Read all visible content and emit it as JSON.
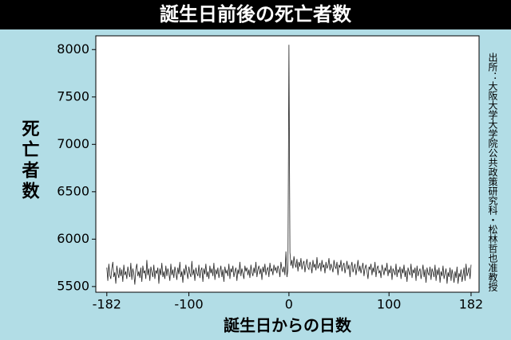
{
  "chart_data": {
    "type": "line",
    "title": "誕生日前後の死亡者数",
    "y_label": "死亡者数",
    "x_label": "誕生日からの日数",
    "source": "出所：大阪大学大学院公共政策研究科・松林哲也准教授",
    "xlim": [
      -193,
      190
    ],
    "ylim": [
      5440,
      8145
    ],
    "xticks": [
      -182,
      -100,
      0,
      100,
      182
    ],
    "yticks": [
      5500,
      6000,
      6500,
      7000,
      7500,
      8000
    ],
    "x": [
      -182,
      -181,
      -180,
      -179,
      -178,
      -177,
      -176,
      -175,
      -174,
      -173,
      -172,
      -171,
      -170,
      -169,
      -168,
      -167,
      -166,
      -165,
      -164,
      -163,
      -162,
      -161,
      -160,
      -159,
      -158,
      -157,
      -156,
      -155,
      -154,
      -153,
      -152,
      -151,
      -150,
      -149,
      -148,
      -147,
      -146,
      -145,
      -144,
      -143,
      -142,
      -141,
      -140,
      -139,
      -138,
      -137,
      -136,
      -135,
      -134,
      -133,
      -132,
      -131,
      -130,
      -129,
      -128,
      -127,
      -126,
      -125,
      -124,
      -123,
      -122,
      -121,
      -120,
      -119,
      -118,
      -117,
      -116,
      -115,
      -114,
      -113,
      -112,
      -111,
      -110,
      -109,
      -108,
      -107,
      -106,
      -105,
      -104,
      -103,
      -102,
      -101,
      -100,
      -99,
      -98,
      -97,
      -96,
      -95,
      -94,
      -93,
      -92,
      -91,
      -90,
      -89,
      -88,
      -87,
      -86,
      -85,
      -84,
      -83,
      -82,
      -81,
      -80,
      -79,
      -78,
      -77,
      -76,
      -75,
      -74,
      -73,
      -72,
      -71,
      -70,
      -69,
      -68,
      -67,
      -66,
      -65,
      -64,
      -63,
      -62,
      -61,
      -60,
      -59,
      -58,
      -57,
      -56,
      -55,
      -54,
      -53,
      -52,
      -51,
      -50,
      -49,
      -48,
      -47,
      -46,
      -45,
      -44,
      -43,
      -42,
      -41,
      -40,
      -39,
      -38,
      -37,
      -36,
      -35,
      -34,
      -33,
      -32,
      -31,
      -30,
      -29,
      -28,
      -27,
      -26,
      -25,
      -24,
      -23,
      -22,
      -21,
      -20,
      -19,
      -18,
      -17,
      -16,
      -15,
      -14,
      -13,
      -12,
      -11,
      -10,
      -9,
      -8,
      -7,
      -6,
      -5,
      -4,
      -3,
      -2,
      -1,
      0,
      1,
      2,
      3,
      4,
      5,
      6,
      7,
      8,
      9,
      10,
      11,
      12,
      13,
      14,
      15,
      16,
      17,
      18,
      19,
      20,
      21,
      22,
      23,
      24,
      25,
      26,
      27,
      28,
      29,
      30,
      31,
      32,
      33,
      34,
      35,
      36,
      37,
      38,
      39,
      40,
      41,
      42,
      43,
      44,
      45,
      46,
      47,
      48,
      49,
      50,
      51,
      52,
      53,
      54,
      55,
      56,
      57,
      58,
      59,
      60,
      61,
      62,
      63,
      64,
      65,
      66,
      67,
      68,
      69,
      70,
      71,
      72,
      73,
      74,
      75,
      76,
      77,
      78,
      79,
      80,
      81,
      82,
      83,
      84,
      85,
      86,
      87,
      88,
      89,
      90,
      91,
      92,
      93,
      94,
      95,
      96,
      97,
      98,
      99,
      100,
      101,
      102,
      103,
      104,
      105,
      106,
      107,
      108,
      109,
      110,
      111,
      112,
      113,
      114,
      115,
      116,
      117,
      118,
      119,
      120,
      121,
      122,
      123,
      124,
      125,
      126,
      127,
      128,
      129,
      130,
      131,
      132,
      133,
      134,
      135,
      136,
      137,
      138,
      139,
      140,
      141,
      142,
      143,
      144,
      145,
      146,
      147,
      148,
      149,
      150,
      151,
      152,
      153,
      154,
      155,
      156,
      157,
      158,
      159,
      160,
      161,
      162,
      163,
      164,
      165,
      166,
      167,
      168,
      169,
      170,
      171,
      172,
      173,
      174,
      175,
      176,
      177,
      178,
      179,
      180,
      181,
      182
    ],
    "series": [
      {
        "color": "#222222",
        "values": [
          5700,
          5560,
          5740,
          5620,
          5580,
          5690,
          5760,
          5600,
          5650,
          5530,
          5720,
          5640,
          5590,
          5700,
          5610,
          5680,
          5550,
          5730,
          5620,
          5660,
          5580,
          5710,
          5640,
          5600,
          5750,
          5570,
          5690,
          5630,
          5520,
          5680,
          5740,
          5610,
          5660,
          5590,
          5700,
          5550,
          5720,
          5640,
          5670,
          5580,
          5780,
          5620,
          5690,
          5560,
          5710,
          5650,
          5600,
          5730,
          5580,
          5670,
          5640,
          5700,
          5530,
          5690,
          5620,
          5750,
          5600,
          5660,
          5580,
          5720,
          5610,
          5690,
          5640,
          5560,
          5740,
          5620,
          5680,
          5590,
          5710,
          5650,
          5570,
          5700,
          5630,
          5760,
          5600,
          5660,
          5540,
          5690,
          5620,
          5730,
          5650,
          5580,
          5710,
          5640,
          5600,
          5770,
          5620,
          5680,
          5560,
          5700,
          5640,
          5610,
          5730,
          5590,
          5670,
          5700,
          5550,
          5690,
          5630,
          5740,
          5600,
          5660,
          5580,
          5720,
          5640,
          5690,
          5610,
          5750,
          5570,
          5680,
          5630,
          5700,
          5590,
          5660,
          5720,
          5600,
          5680,
          5550,
          5710,
          5640,
          5670,
          5610,
          5740,
          5580,
          5690,
          5650,
          5720,
          5600,
          5660,
          5700,
          5560,
          5680,
          5630,
          5760,
          5610,
          5690,
          5640,
          5580,
          5720,
          5660,
          5700,
          5620,
          5680,
          5590,
          5730,
          5650,
          5610,
          5700,
          5640,
          5760,
          5600,
          5680,
          5720,
          5630,
          5690,
          5570,
          5710,
          5650,
          5740,
          5620,
          5680,
          5700,
          5600,
          5750,
          5660,
          5690,
          5620,
          5730,
          5670,
          5700,
          5640,
          5720,
          5680,
          5600,
          5760,
          5690,
          5650,
          5710,
          5620,
          5870,
          5600,
          5680,
          8050,
          5860,
          5720,
          5780,
          5690,
          5820,
          5740,
          5700,
          5790,
          5660,
          5760,
          5710,
          5800,
          5680,
          5740,
          5770,
          5650,
          5730,
          5790,
          5700,
          5680,
          5760,
          5720,
          5640,
          5780,
          5700,
          5740,
          5670,
          5810,
          5690,
          5720,
          5750,
          5660,
          5780,
          5700,
          5730,
          5640,
          5760,
          5690,
          5720,
          5800,
          5670,
          5740,
          5700,
          5650,
          5780,
          5710,
          5690,
          5760,
          5620,
          5730,
          5700,
          5780,
          5660,
          5720,
          5750,
          5640,
          5700,
          5770,
          5680,
          5730,
          5600,
          5710,
          5760,
          5650,
          5700,
          5740,
          5620,
          5690,
          5780,
          5660,
          5720,
          5640,
          5700,
          5750,
          5610,
          5690,
          5730,
          5660,
          5580,
          5710,
          5680,
          5740,
          5620,
          5700,
          5650,
          5760,
          5600,
          5690,
          5720,
          5640,
          5670,
          5590,
          5730,
          5680,
          5620,
          5700,
          5660,
          5750,
          5610,
          5680,
          5640,
          5720,
          5570,
          5690,
          5660,
          5620,
          5740,
          5600,
          5680,
          5650,
          5710,
          5580,
          5690,
          5640,
          5730,
          5600,
          5670,
          5550,
          5700,
          5650,
          5620,
          5740,
          5590,
          5680,
          5640,
          5700,
          5560,
          5720,
          5610,
          5660,
          5690,
          5580,
          5650,
          5730,
          5600,
          5680,
          5540,
          5700,
          5640,
          5620,
          5710,
          5570,
          5690,
          5650,
          5600,
          5730,
          5560,
          5680,
          5620,
          5700,
          5540,
          5660,
          5610,
          5720,
          5580,
          5640,
          5690,
          5530,
          5650,
          5600,
          5700,
          5560,
          5680,
          5620,
          5540,
          5660,
          5590,
          5710,
          5530,
          5640,
          5600,
          5680,
          5550,
          5620,
          5700,
          5560,
          5740,
          5610,
          5650,
          5700,
          5580,
          5730
        ]
      }
    ]
  }
}
